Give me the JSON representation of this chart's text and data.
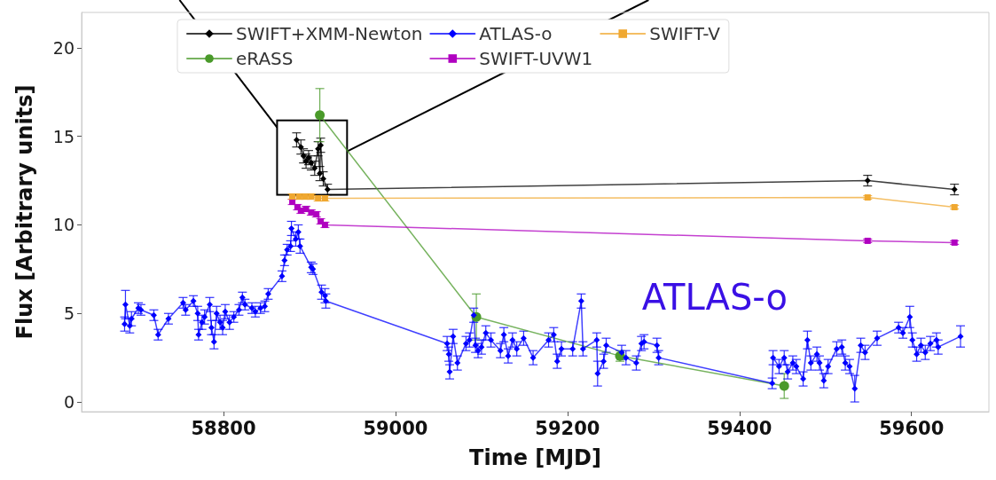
{
  "chart_data": {
    "type": "line",
    "xlabel": "Time [MJD]",
    "ylabel": "Flux [Arbitrary units]",
    "xlim": [
      58635,
      59690
    ],
    "ylim": [
      -0.55,
      22
    ],
    "xticks": [
      58800,
      59000,
      59200,
      59400,
      59600
    ],
    "yticks": [
      0,
      5,
      10,
      15,
      20
    ],
    "grid": false,
    "legend": "top",
    "annotations": [
      "ATLAS-o"
    ],
    "series": [
      {
        "name": "SWIFT+XMM-Newton",
        "color": "#000000",
        "marker": "diamond",
        "x": [
          58885,
          58890,
          58893,
          58896,
          58899,
          58902,
          58906,
          58910,
          58912,
          58913,
          58916,
          58921,
          59549,
          59650
        ],
        "values": [
          14.8,
          14.4,
          13.9,
          13.6,
          13.8,
          13.5,
          13.2,
          14.3,
          12.9,
          14.5,
          12.6,
          12.0,
          12.5,
          12.0
        ],
        "errors": [
          0.4,
          0.4,
          0.4,
          0.4,
          0.4,
          0.4,
          0.4,
          0.4,
          0.4,
          0.4,
          0.4,
          0.3,
          0.3,
          0.3
        ]
      },
      {
        "name": "eRASS",
        "color": "#4a9a2a",
        "marker": "circle",
        "x": [
          58912,
          59094,
          59261,
          59452
        ],
        "values": [
          16.2,
          4.8,
          2.6,
          0.9
        ],
        "errors": [
          1.5,
          1.3,
          0.3,
          0.7
        ]
      },
      {
        "name": "ATLAS-o",
        "color": "#0000ff",
        "marker": "diamond",
        "x": [
          58685,
          58686,
          58691,
          58693,
          58701,
          58704,
          58719,
          58724,
          58736,
          58753,
          58756,
          58765,
          58770,
          58771,
          58775,
          58778,
          58784,
          58786,
          58789,
          58792,
          58796,
          58799,
          58802,
          58807,
          58812,
          58818,
          58822,
          58825,
          58833,
          58837,
          58843,
          58848,
          58852,
          58868,
          58871,
          58874,
          58878,
          58879,
          58884,
          58887,
          58889,
          58902,
          58904,
          58914,
          58918,
          58919,
          59060,
          59062,
          59063,
          59067,
          59072,
          59082,
          59086,
          59091,
          59093,
          59096,
          59100,
          59105,
          59111,
          59122,
          59126,
          59131,
          59136,
          59141,
          59149,
          59160,
          59178,
          59184,
          59188,
          59193,
          59206,
          59216,
          59218,
          59234,
          59235,
          59242,
          59245,
          59263,
          59268,
          59280,
          59286,
          59289,
          59304,
          59306,
          59438,
          59439,
          59446,
          59452,
          59456,
          59462,
          59466,
          59474,
          59479,
          59483,
          59490,
          59493,
          59498,
          59503,
          59513,
          59519,
          59523,
          59528,
          59534,
          59541,
          59546,
          59560,
          59585,
          59590,
          59598,
          59601,
          59606,
          59611,
          59616,
          59622,
          59629,
          59631,
          59657
        ],
        "values": [
          4.4,
          5.5,
          4.3,
          4.7,
          5.3,
          5.2,
          4.9,
          3.8,
          4.7,
          5.6,
          5.2,
          5.7,
          5.0,
          3.8,
          4.5,
          4.8,
          5.5,
          4.2,
          3.4,
          5.0,
          4.5,
          4.2,
          5.1,
          4.5,
          4.8,
          5.2,
          5.9,
          5.5,
          5.3,
          5.1,
          5.3,
          5.4,
          6.1,
          7.1,
          8.0,
          8.6,
          8.8,
          9.8,
          9.2,
          9.6,
          8.8,
          7.6,
          7.5,
          6.2,
          6.0,
          5.7,
          3.3,
          2.7,
          1.7,
          3.7,
          2.2,
          3.3,
          3.5,
          4.9,
          3.2,
          2.9,
          3.1,
          3.9,
          3.5,
          2.9,
          3.8,
          2.6,
          3.5,
          3.0,
          3.6,
          2.5,
          3.5,
          3.8,
          2.3,
          3.0,
          3.0,
          5.7,
          3.0,
          3.5,
          1.6,
          2.3,
          3.2,
          2.8,
          2.5,
          2.2,
          3.3,
          3.4,
          3.2,
          2.5,
          1.05,
          2.5,
          2.0,
          2.5,
          1.7,
          2.2,
          2.0,
          1.3,
          3.5,
          2.2,
          2.7,
          2.2,
          1.2,
          2.0,
          3.0,
          3.1,
          2.2,
          2.0,
          0.75,
          3.2,
          2.8,
          3.6,
          4.2,
          3.9,
          4.8,
          3.5,
          2.7,
          3.2,
          2.8,
          3.3,
          3.5,
          3.1,
          3.7
        ],
        "errors": [
          0.4,
          0.8,
          0.4,
          0.4,
          0.3,
          0.3,
          0.3,
          0.3,
          0.3,
          0.3,
          0.3,
          0.3,
          0.4,
          0.3,
          0.4,
          0.4,
          0.4,
          0.4,
          0.4,
          0.4,
          0.4,
          0.4,
          0.4,
          0.4,
          0.3,
          0.3,
          0.3,
          0.3,
          0.3,
          0.3,
          0.3,
          0.3,
          0.3,
          0.3,
          0.3,
          0.3,
          0.3,
          0.4,
          0.4,
          0.4,
          0.4,
          0.3,
          0.3,
          0.4,
          0.4,
          0.4,
          0.4,
          0.4,
          0.4,
          0.4,
          0.4,
          0.4,
          0.4,
          0.4,
          0.4,
          0.4,
          0.4,
          0.4,
          0.4,
          0.4,
          0.4,
          0.4,
          0.4,
          0.4,
          0.4,
          0.4,
          0.4,
          0.4,
          0.4,
          0.4,
          0.4,
          0.4,
          0.4,
          0.4,
          0.7,
          0.4,
          0.4,
          0.4,
          0.4,
          0.4,
          0.4,
          0.4,
          0.4,
          0.4,
          0.3,
          0.4,
          0.4,
          0.4,
          0.4,
          0.4,
          0.4,
          0.4,
          0.5,
          0.4,
          0.4,
          0.4,
          0.4,
          0.4,
          0.4,
          0.4,
          0.4,
          0.4,
          0.75,
          0.4,
          0.4,
          0.4,
          0.3,
          0.3,
          0.6,
          0.4,
          0.4,
          0.4,
          0.4,
          0.4,
          0.4,
          0.4,
          0.6
        ]
      },
      {
        "name": "SWIFT-UVW1",
        "color": "#b000c0",
        "marker": "square",
        "x": [
          58880,
          58886,
          58890,
          58896,
          58902,
          58908,
          58913,
          58918,
          59549,
          59650
        ],
        "values": [
          11.3,
          11.0,
          10.8,
          10.9,
          10.7,
          10.6,
          10.2,
          10.0,
          9.1,
          9.0
        ],
        "errors": [
          0.15,
          0.15,
          0.15,
          0.15,
          0.15,
          0.15,
          0.15,
          0.15,
          0.1,
          0.1
        ]
      },
      {
        "name": "SWIFT-V",
        "color": "#f0a830",
        "marker": "square",
        "x": [
          58880,
          58888,
          58895,
          58902,
          58910,
          58918,
          59549,
          59650
        ],
        "values": [
          11.6,
          11.6,
          11.6,
          11.6,
          11.5,
          11.5,
          11.55,
          11.0
        ],
        "errors": [
          0.15,
          0.15,
          0.15,
          0.15,
          0.15,
          0.15,
          0.1,
          0.1
        ]
      }
    ]
  }
}
